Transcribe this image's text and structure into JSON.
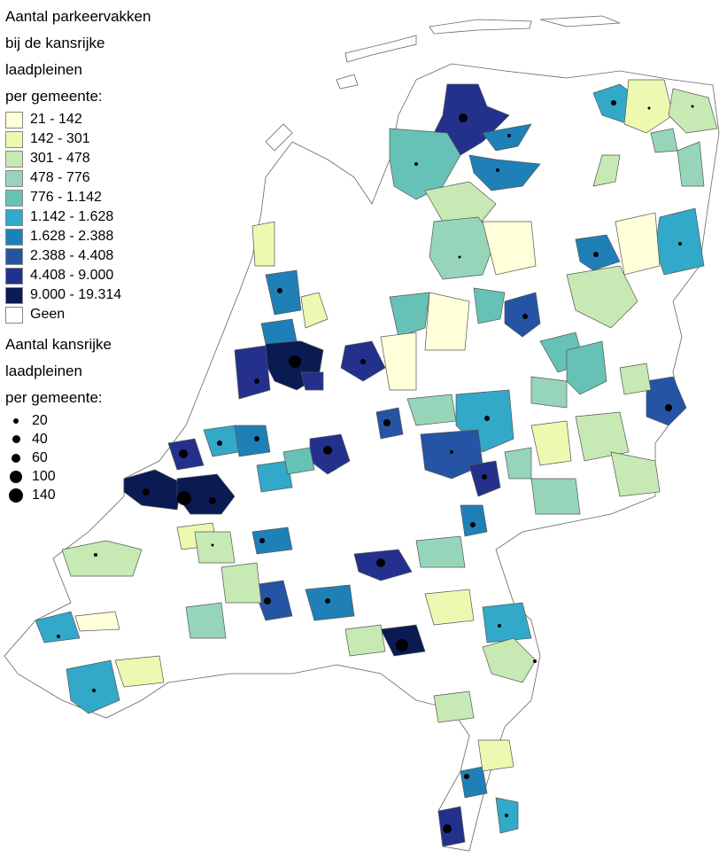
{
  "legend": {
    "fill_title_lines": [
      "Aantal parkeervakken",
      "bij de kansrijke",
      "laadpleinen",
      "per gemeente:"
    ],
    "classes": [
      {
        "label": "21 - 142",
        "color": "#ffffd9"
      },
      {
        "label": "142 - 301",
        "color": "#edf8b1"
      },
      {
        "label": "301 - 478",
        "color": "#c7e9b4"
      },
      {
        "label": "478 - 776",
        "color": "#96d5ba"
      },
      {
        "label": "776 - 1.142",
        "color": "#66c2b6"
      },
      {
        "label": "1.142 - 1.628",
        "color": "#32a9c8"
      },
      {
        "label": "1.628 - 2.388",
        "color": "#1f80b8"
      },
      {
        "label": "2.388 - 4.408",
        "color": "#2554a4"
      },
      {
        "label": "4.408 - 9.000",
        "color": "#24318c"
      },
      {
        "label": "9.000 - 19.314",
        "color": "#0a1a53"
      },
      {
        "label": "Geen",
        "color": "#ffffff"
      }
    ],
    "size_title_lines": [
      "Aantal kansrijke",
      "laadpleinen",
      "per gemeente:"
    ],
    "sizes": [
      {
        "label": "20",
        "value": 20
      },
      {
        "label": "40",
        "value": 40
      },
      {
        "label": "60",
        "value": 60
      },
      {
        "label": "100",
        "value": 100
      },
      {
        "label": "140",
        "value": 140
      }
    ]
  }
}
